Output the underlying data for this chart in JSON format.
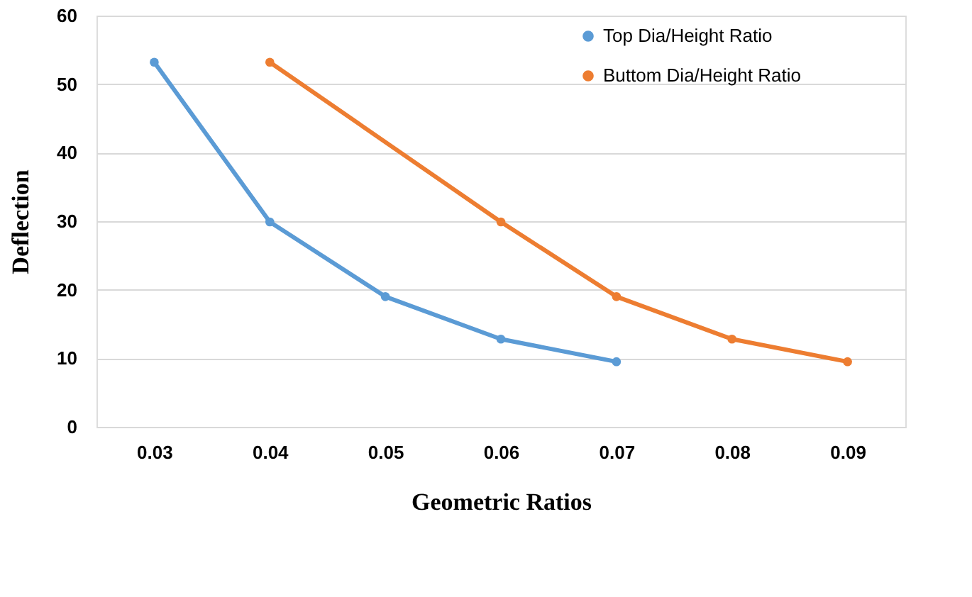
{
  "chart_data": {
    "type": "line",
    "xlabel": "Geometric Ratios",
    "ylabel": "Deflection",
    "series": [
      {
        "name": "Top Dia/Height Ratio",
        "color": "#5b9bd5",
        "x": [
          0.03,
          0.04,
          0.05,
          0.06,
          0.07
        ],
        "values": [
          53.2,
          29.9,
          19.0,
          12.8,
          9.5
        ]
      },
      {
        "name": "Buttom Dia/Height Ratio",
        "color": "#ed7d31",
        "x": [
          0.04,
          0.06,
          0.07,
          0.08,
          0.09
        ],
        "values": [
          53.2,
          29.9,
          19.0,
          12.8,
          9.5
        ]
      }
    ],
    "xlim": [
      0.025,
      0.095
    ],
    "xticks": [
      0.03,
      0.04,
      0.05,
      0.06,
      0.07,
      0.08,
      0.09
    ],
    "ylim": [
      0,
      60
    ],
    "yticks": [
      0,
      10,
      20,
      30,
      40,
      50,
      60
    ],
    "grid": "y",
    "legend": "top right",
    "marker": "circle",
    "line_style": "solid"
  }
}
